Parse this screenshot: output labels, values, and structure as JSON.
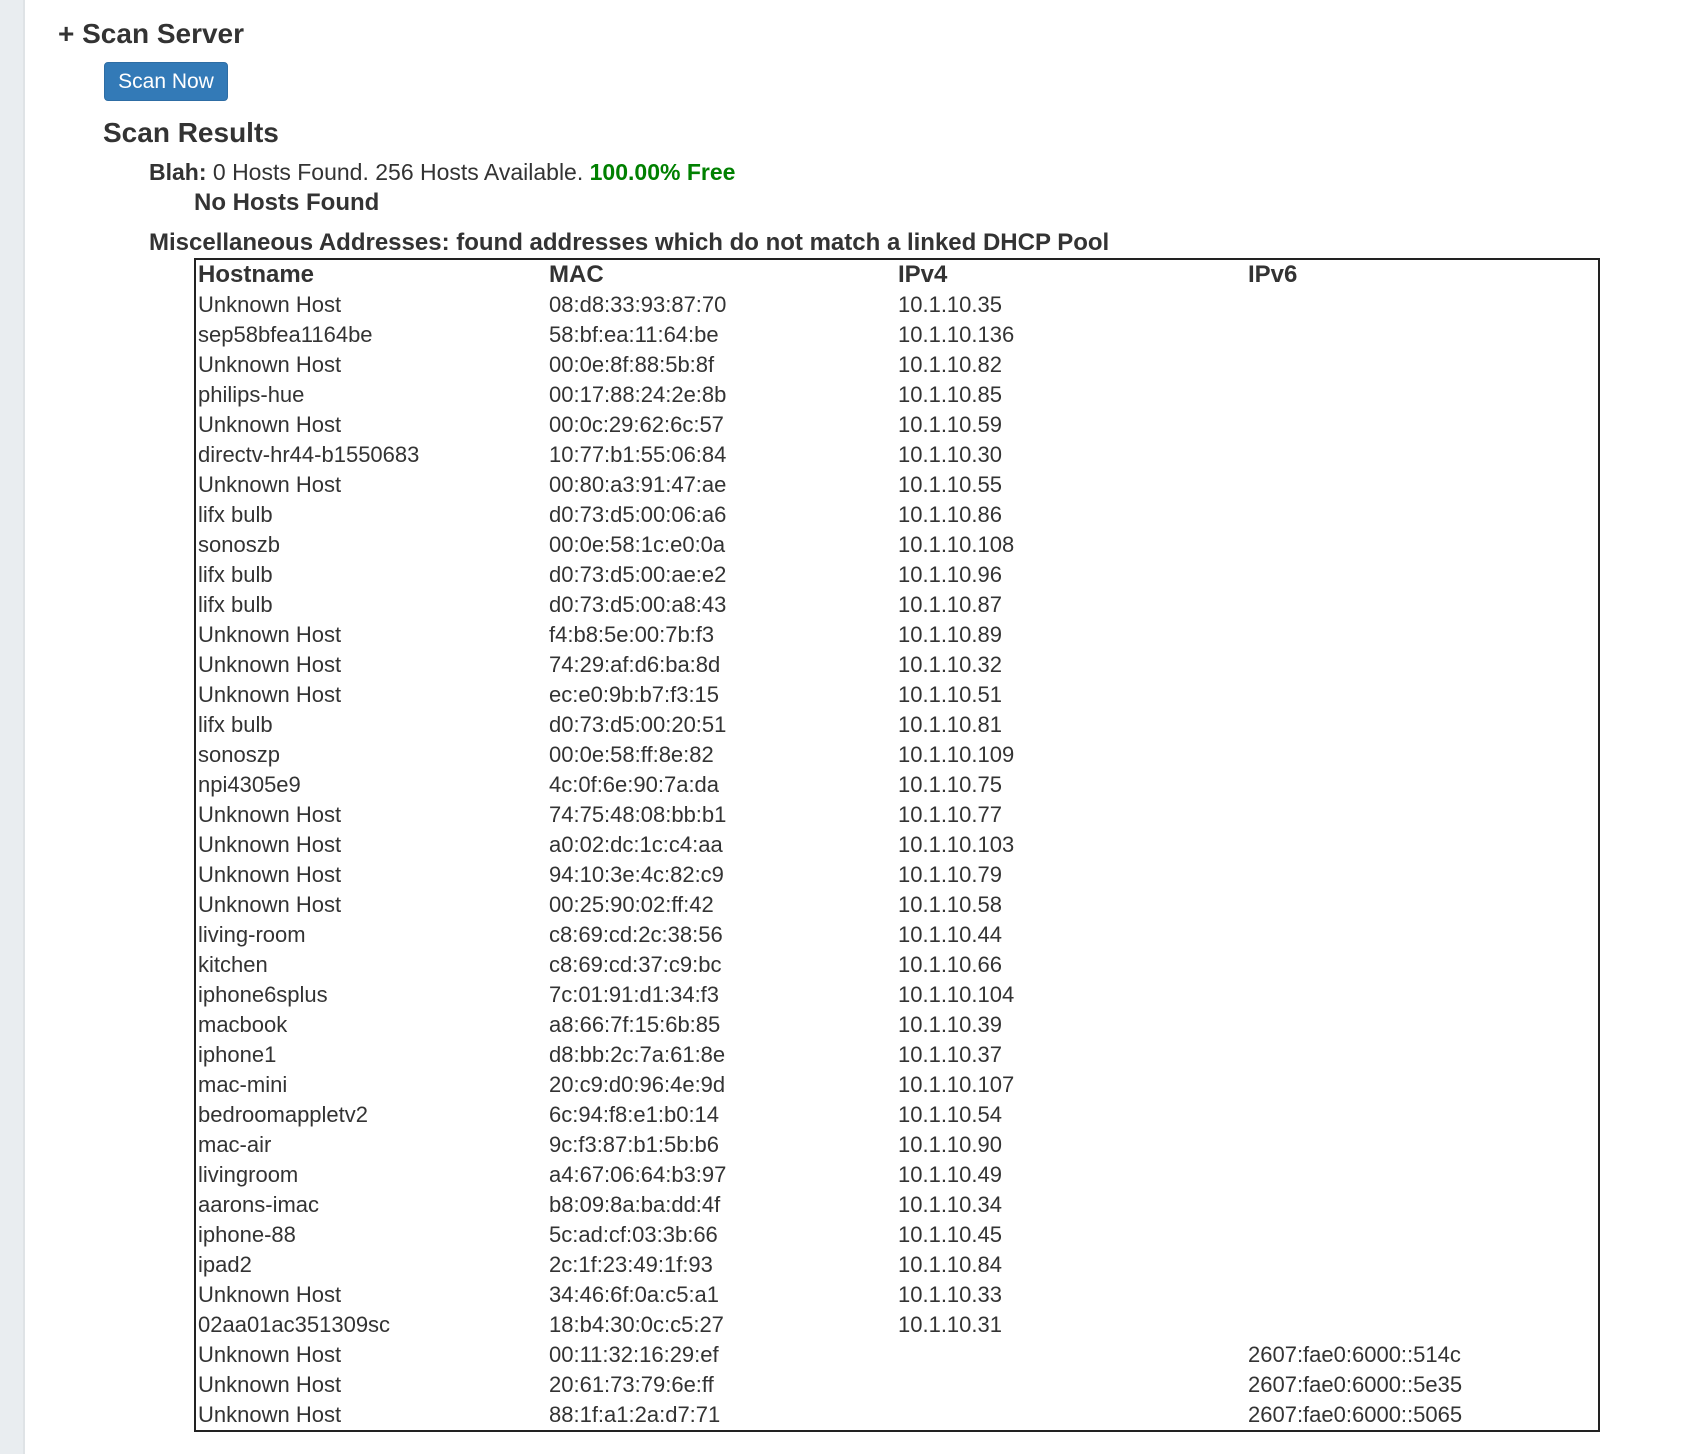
{
  "section": {
    "title": "+ Scan Server",
    "scan_button": "Scan Now"
  },
  "results": {
    "title": "Scan Results",
    "pool_name": "Blah:",
    "summary": "0 Hosts Found. 256 Hosts Available.",
    "free": "100.00% Free",
    "free_color": "#008000",
    "no_hosts": "No Hosts Found",
    "misc_heading": "Miscellaneous Addresses: found addresses which do not match a linked DHCP Pool"
  },
  "table": {
    "columns": [
      "Hostname",
      "MAC",
      "IPv4",
      "IPv6"
    ],
    "rows": [
      [
        "Unknown Host",
        "08:d8:33:93:87:70",
        "10.1.10.35",
        ""
      ],
      [
        "sep58bfea1164be",
        "58:bf:ea:11:64:be",
        "10.1.10.136",
        ""
      ],
      [
        "Unknown Host",
        "00:0e:8f:88:5b:8f",
        "10.1.10.82",
        ""
      ],
      [
        "philips-hue",
        "00:17:88:24:2e:8b",
        "10.1.10.85",
        ""
      ],
      [
        "Unknown Host",
        "00:0c:29:62:6c:57",
        "10.1.10.59",
        ""
      ],
      [
        "directv-hr44-b1550683",
        "10:77:b1:55:06:84",
        "10.1.10.30",
        ""
      ],
      [
        "Unknown Host",
        "00:80:a3:91:47:ae",
        "10.1.10.55",
        ""
      ],
      [
        "lifx bulb",
        "d0:73:d5:00:06:a6",
        "10.1.10.86",
        ""
      ],
      [
        "sonoszb",
        "00:0e:58:1c:e0:0a",
        "10.1.10.108",
        ""
      ],
      [
        "lifx bulb",
        "d0:73:d5:00:ae:e2",
        "10.1.10.96",
        ""
      ],
      [
        "lifx bulb",
        "d0:73:d5:00:a8:43",
        "10.1.10.87",
        ""
      ],
      [
        "Unknown Host",
        "f4:b8:5e:00:7b:f3",
        "10.1.10.89",
        ""
      ],
      [
        "Unknown Host",
        "74:29:af:d6:ba:8d",
        "10.1.10.32",
        ""
      ],
      [
        "Unknown Host",
        "ec:e0:9b:b7:f3:15",
        "10.1.10.51",
        ""
      ],
      [
        "lifx bulb",
        "d0:73:d5:00:20:51",
        "10.1.10.81",
        ""
      ],
      [
        "sonoszp",
        "00:0e:58:ff:8e:82",
        "10.1.10.109",
        ""
      ],
      [
        "npi4305e9",
        "4c:0f:6e:90:7a:da",
        "10.1.10.75",
        ""
      ],
      [
        "Unknown Host",
        "74:75:48:08:bb:b1",
        "10.1.10.77",
        ""
      ],
      [
        "Unknown Host",
        "a0:02:dc:1c:c4:aa",
        "10.1.10.103",
        ""
      ],
      [
        "Unknown Host",
        "94:10:3e:4c:82:c9",
        "10.1.10.79",
        ""
      ],
      [
        "Unknown Host",
        "00:25:90:02:ff:42",
        "10.1.10.58",
        ""
      ],
      [
        "living-room",
        "c8:69:cd:2c:38:56",
        "10.1.10.44",
        ""
      ],
      [
        "kitchen",
        "c8:69:cd:37:c9:bc",
        "10.1.10.66",
        ""
      ],
      [
        "iphone6splus",
        "7c:01:91:d1:34:f3",
        "10.1.10.104",
        ""
      ],
      [
        "macbook",
        "a8:66:7f:15:6b:85",
        "10.1.10.39",
        ""
      ],
      [
        "iphone1",
        "d8:bb:2c:7a:61:8e",
        "10.1.10.37",
        ""
      ],
      [
        "mac-mini",
        "20:c9:d0:96:4e:9d",
        "10.1.10.107",
        ""
      ],
      [
        "bedroomappletv2",
        "6c:94:f8:e1:b0:14",
        "10.1.10.54",
        ""
      ],
      [
        "mac-air",
        "9c:f3:87:b1:5b:b6",
        "10.1.10.90",
        ""
      ],
      [
        "livingroom",
        "a4:67:06:64:b3:97",
        "10.1.10.49",
        ""
      ],
      [
        "aarons-imac",
        "b8:09:8a:ba:dd:4f",
        "10.1.10.34",
        ""
      ],
      [
        "iphone-88",
        "5c:ad:cf:03:3b:66",
        "10.1.10.45",
        ""
      ],
      [
        "ipad2",
        "2c:1f:23:49:1f:93",
        "10.1.10.84",
        ""
      ],
      [
        "Unknown Host",
        "34:46:6f:0a:c5:a1",
        "10.1.10.33",
        ""
      ],
      [
        "02aa01ac351309sc",
        "18:b4:30:0c:c5:27",
        "10.1.10.31",
        ""
      ],
      [
        "Unknown Host",
        "00:11:32:16:29:ef",
        "",
        "2607:fae0:6000::514c"
      ],
      [
        "Unknown Host",
        "20:61:73:79:6e:ff",
        "",
        "2607:fae0:6000::5e35"
      ],
      [
        "Unknown Host",
        "88:1f:a1:2a:d7:71",
        "",
        "2607:fae0:6000::5065"
      ]
    ]
  }
}
